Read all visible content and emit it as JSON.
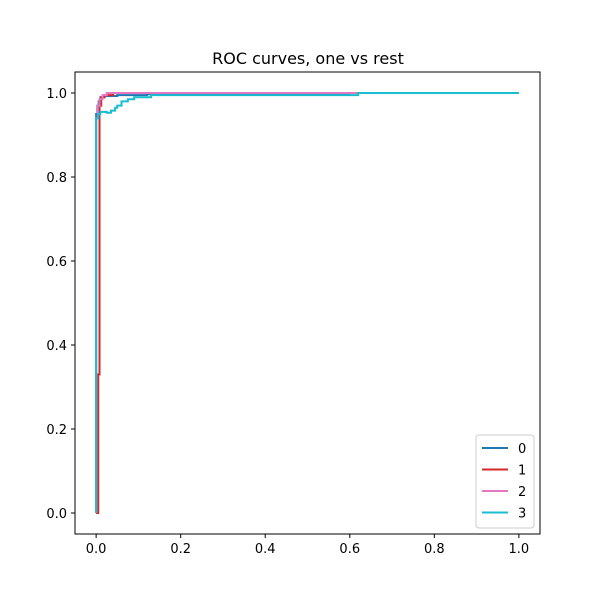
{
  "chart_data": {
    "type": "line",
    "title": "ROC curves, one vs rest",
    "xlabel": "",
    "ylabel": "",
    "xlim": [
      -0.05,
      1.05
    ],
    "ylim": [
      -0.05,
      1.05
    ],
    "xticks": [
      0.0,
      0.2,
      0.4,
      0.6,
      0.8,
      1.0
    ],
    "yticks": [
      0.0,
      0.2,
      0.4,
      0.6,
      0.8,
      1.0
    ],
    "xtick_labels": [
      "0.0",
      "0.2",
      "0.4",
      "0.6",
      "0.8",
      "1.0"
    ],
    "ytick_labels": [
      "0.0",
      "0.2",
      "0.4",
      "0.6",
      "0.8",
      "1.0"
    ],
    "grid": false,
    "legend_position": "lower-right",
    "series": [
      {
        "name": "0",
        "color": "#1f77b4",
        "x": [
          0.0,
          0.0,
          0.003,
          0.003,
          0.006,
          0.006,
          0.01,
          0.01,
          0.02,
          0.02,
          0.05,
          0.05,
          0.12,
          0.12,
          0.6,
          0.6,
          1.0
        ],
        "y": [
          0.0,
          0.95,
          0.95,
          0.97,
          0.97,
          0.98,
          0.98,
          0.99,
          0.99,
          0.993,
          0.993,
          0.995,
          0.995,
          0.997,
          0.997,
          1.0,
          1.0
        ]
      },
      {
        "name": "1",
        "color": "#d62728",
        "x": [
          0.0,
          0.005,
          0.005,
          0.008,
          0.008,
          0.012,
          0.012,
          0.02,
          0.02,
          0.04,
          0.04,
          1.0
        ],
        "y": [
          0.0,
          0.0,
          0.33,
          0.33,
          0.97,
          0.97,
          0.99,
          0.99,
          0.995,
          0.995,
          1.0,
          1.0
        ]
      },
      {
        "name": "2",
        "color": "#e377c2",
        "x": [
          0.0,
          0.0,
          0.004,
          0.004,
          0.008,
          0.008,
          0.015,
          0.015,
          0.025,
          0.025,
          1.0
        ],
        "y": [
          0.0,
          0.94,
          0.94,
          0.97,
          0.97,
          0.985,
          0.985,
          0.995,
          0.995,
          1.0,
          1.0
        ]
      },
      {
        "name": "3",
        "color": "#17becf",
        "x": [
          0.0,
          0.0,
          0.005,
          0.005,
          0.01,
          0.01,
          0.025,
          0.025,
          0.035,
          0.035,
          0.045,
          0.045,
          0.05,
          0.05,
          0.06,
          0.06,
          0.075,
          0.075,
          0.09,
          0.09,
          0.13,
          0.13,
          0.62,
          0.62,
          1.0
        ],
        "y": [
          0.0,
          0.94,
          0.94,
          0.95,
          0.95,
          0.955,
          0.955,
          0.953,
          0.953,
          0.958,
          0.958,
          0.965,
          0.965,
          0.97,
          0.97,
          0.98,
          0.98,
          0.985,
          0.985,
          0.99,
          0.99,
          0.995,
          0.995,
          1.0,
          1.0
        ]
      }
    ]
  }
}
